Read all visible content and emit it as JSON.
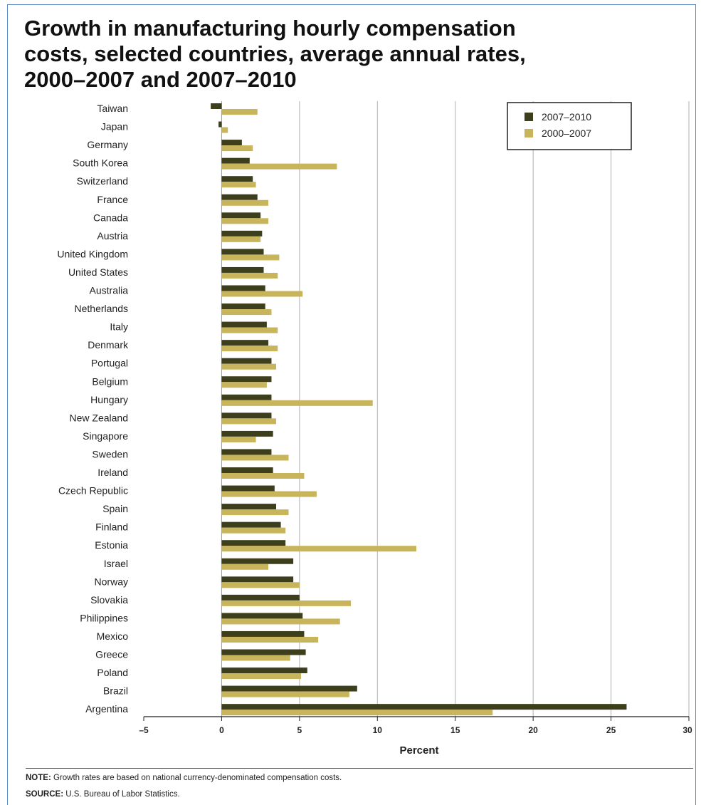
{
  "title": {
    "line1": "Growth in manufacturing hourly compensation",
    "line2": "costs, selected countries, average annual rates,",
    "line3": "2000–2007 and 2007–2010"
  },
  "note": {
    "label": "NOTE:",
    "text": " Growth rates are based on national currency-denominated compensation costs."
  },
  "source": {
    "label": "SOURCE:",
    "text": " U.S. Bureau of Labor Statistics."
  },
  "colors": {
    "series_2007_2010": "#3d3f1c",
    "series_2000_2007": "#c8b45a",
    "grid": "#b0b0b0"
  },
  "chart_data": {
    "type": "bar",
    "orientation": "horizontal",
    "xlabel": "Percent",
    "xlim": [
      -5,
      30
    ],
    "xticks": [
      -5,
      0,
      5,
      10,
      15,
      20,
      25,
      30
    ],
    "xtick_labels": [
      "–5",
      "0",
      "5",
      "10",
      "15",
      "20",
      "25",
      "30"
    ],
    "grid": "vertical",
    "legend_position": "top-right",
    "categories": [
      "Taiwan",
      "Japan",
      "Germany",
      "South Korea",
      "Switzerland",
      "France",
      "Canada",
      "Austria",
      "United Kingdom",
      "United States",
      "Australia",
      "Netherlands",
      "Italy",
      "Denmark",
      "Portugal",
      "Belgium",
      "Hungary",
      "New Zealand",
      "Singapore",
      "Sweden",
      "Ireland",
      "Czech Republic",
      "Spain",
      "Finland",
      "Estonia",
      "Israel",
      "Norway",
      "Slovakia",
      "Philippines",
      "Mexico",
      "Greece",
      "Poland",
      "Brazil",
      "Argentina"
    ],
    "series": [
      {
        "name": "2007–2010",
        "values": [
          -0.7,
          -0.2,
          1.3,
          1.8,
          2.0,
          2.3,
          2.5,
          2.6,
          2.7,
          2.7,
          2.8,
          2.8,
          2.9,
          3.0,
          3.2,
          3.2,
          3.2,
          3.2,
          3.3,
          3.2,
          3.3,
          3.4,
          3.5,
          3.8,
          4.1,
          4.6,
          4.6,
          5.0,
          5.2,
          5.3,
          5.4,
          5.5,
          8.7,
          26.0
        ]
      },
      {
        "name": "2000–2007",
        "values": [
          2.3,
          0.4,
          2.0,
          7.4,
          2.2,
          3.0,
          3.0,
          2.5,
          3.7,
          3.6,
          5.2,
          3.2,
          3.6,
          3.6,
          3.5,
          2.9,
          9.7,
          3.5,
          2.2,
          4.3,
          5.3,
          6.1,
          4.3,
          4.1,
          12.5,
          3.0,
          5.0,
          8.3,
          7.6,
          6.2,
          4.4,
          5.1,
          8.2,
          17.4
        ]
      }
    ]
  }
}
